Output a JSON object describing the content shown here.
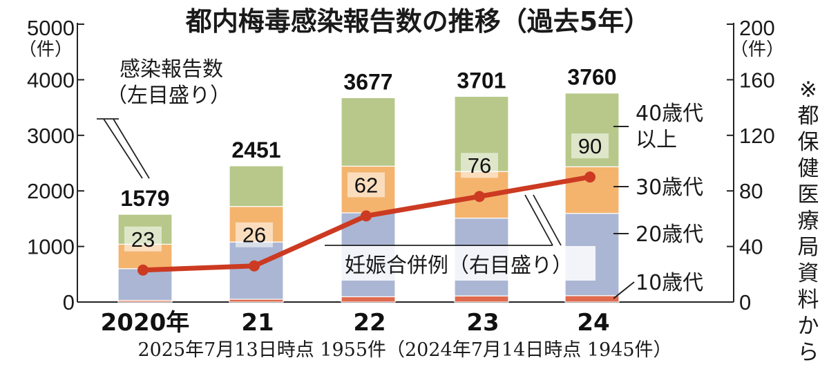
{
  "chart_data": {
    "type": "bar",
    "title": "都内梅毒感染報告数の推移（過去5年）",
    "categories": [
      "2020年",
      "21",
      "22",
      "23",
      "24"
    ],
    "stack_order": [
      "10歳代",
      "20歳代",
      "30歳代",
      "40歳代以上"
    ],
    "series": [
      {
        "name": "10歳代",
        "color": "#e06a4e",
        "values": [
          30,
          50,
          95,
          110,
          115
        ]
      },
      {
        "name": "20歳代",
        "color": "#aab6d3",
        "values": [
          570,
          1030,
          1510,
          1400,
          1480
        ]
      },
      {
        "name": "30歳代",
        "color": "#f4b46e",
        "values": [
          440,
          640,
          840,
          840,
          840
        ]
      },
      {
        "name": "40歳代以上",
        "color": "#b7c88a",
        "values": [
          539,
          731,
          1232,
          1351,
          1325
        ]
      }
    ],
    "totals": [
      1579,
      2451,
      3677,
      3701,
      3760
    ],
    "line": {
      "name": "妊娠合併例",
      "color": "#cc3a22",
      "values": [
        23,
        26,
        62,
        76,
        90
      ]
    },
    "y_left": {
      "ylim": [
        0,
        5000
      ],
      "ticks": [
        "0",
        "1000",
        "2000",
        "3000",
        "4000",
        "5000"
      ],
      "unit": "（件）"
    },
    "y_right": {
      "ylim": [
        0,
        200
      ],
      "ticks": [
        "0",
        "40",
        "80",
        "120",
        "160",
        "200"
      ],
      "unit": "（件）"
    },
    "labels": {
      "bars_line1": "感染報告数",
      "bars_line2": "（左目盛り）",
      "line_label": "妊娠合併例（右目盛り）",
      "seg_40_line1": "40歳代",
      "seg_40_line2": "以上",
      "seg_30": "30歳代",
      "seg_20": "20歳代",
      "seg_10": "10歳代"
    },
    "footnote": "2025年7月13日時点 1955件（2024年7月14日時点 1945件）",
    "source_note": "※都保健医療局資料から",
    "grid": false
  }
}
